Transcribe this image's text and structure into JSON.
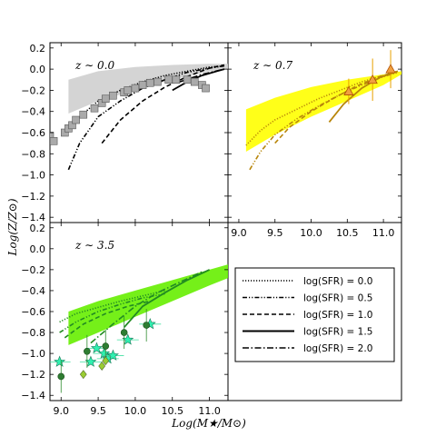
{
  "chart_data": {
    "type": "line",
    "xlabel": "Log(M★/M⊙)",
    "ylabel": "Log(Z/Z⊙)",
    "xlim": [
      8.85,
      11.25
    ],
    "ylim": [
      -1.45,
      0.25
    ],
    "xticks": [
      "9.0",
      "9.5",
      "10.0",
      "10.5",
      "11.0"
    ],
    "yticks": [
      "0.2",
      "0.0",
      "-0.2",
      "-0.4",
      "-0.6",
      "-0.8",
      "-1.0",
      "-1.2",
      "-1.4"
    ],
    "legend": {
      "placement": "lower-right panel",
      "entries": [
        {
          "label": "log(SFR) = 0.0",
          "style": "dotted"
        },
        {
          "label": "log(SFR) = 0.5",
          "style": "dash-dot-dot"
        },
        {
          "label": "log(SFR) = 1.0",
          "style": "dashed"
        },
        {
          "label": "log(SFR) = 1.5",
          "style": "solid"
        },
        {
          "label": "log(SFR) = 2.0",
          "style": "dash-dot"
        }
      ]
    },
    "panels": [
      {
        "label": "z ~ 0.0",
        "band_color": "#cfcfcf",
        "line_color": "#000000",
        "band": {
          "x": [
            9.1,
            9.5,
            10.0,
            10.5,
            11.0,
            11.25
          ],
          "upper": [
            -0.1,
            -0.02,
            0.02,
            0.04,
            0.05,
            0.05
          ],
          "lower": [
            -0.42,
            -0.3,
            -0.2,
            -0.1,
            -0.02,
            0.0
          ]
        },
        "series": [
          {
            "name": "log(SFR) = 0.0",
            "x": [
              9.1,
              9.3,
              9.5,
              9.8,
              10.1,
              10.4,
              10.7,
              11.0,
              11.2
            ],
            "y": [
              -0.58,
              -0.42,
              -0.3,
              -0.2,
              -0.12,
              -0.06,
              -0.02,
              0.02,
              0.03
            ]
          },
          {
            "name": "log(SFR) = 0.5",
            "x": [
              9.1,
              9.25,
              9.5,
              9.8,
              10.1,
              10.4,
              10.7,
              11.0,
              11.2
            ],
            "y": [
              -0.95,
              -0.7,
              -0.45,
              -0.3,
              -0.18,
              -0.1,
              -0.03,
              0.01,
              0.03
            ]
          },
          {
            "name": "log(SFR) = 1.0",
            "x": [
              9.55,
              9.8,
              10.1,
              10.4,
              10.7,
              11.0,
              11.2
            ],
            "y": [
              -0.7,
              -0.48,
              -0.3,
              -0.17,
              -0.07,
              0.01,
              0.04
            ]
          },
          {
            "name": "log(SFR) = 1.5",
            "x": [
              10.5,
              10.7,
              10.9,
              11.1,
              11.2
            ],
            "y": [
              -0.2,
              -0.12,
              -0.06,
              -0.02,
              0.0
            ]
          },
          {
            "name": "log(SFR) = 2.0",
            "x": [
              10.6,
              10.9,
              11.2
            ],
            "y": [
              -0.12,
              -0.05,
              0.0
            ]
          }
        ],
        "points": [
          {
            "x": 8.85,
            "y": -0.63
          },
          {
            "x": 8.9,
            "y": -0.68
          },
          {
            "x": 9.05,
            "y": -0.6
          },
          {
            "x": 9.1,
            "y": -0.56
          },
          {
            "x": 9.15,
            "y": -0.53
          },
          {
            "x": 9.2,
            "y": -0.48
          },
          {
            "x": 9.3,
            "y": -0.43
          },
          {
            "x": 9.45,
            "y": -0.37
          },
          {
            "x": 9.55,
            "y": -0.32
          },
          {
            "x": 9.6,
            "y": -0.28
          },
          {
            "x": 9.7,
            "y": -0.25
          },
          {
            "x": 9.85,
            "y": -0.22
          },
          {
            "x": 9.9,
            "y": -0.2
          },
          {
            "x": 10.0,
            "y": -0.18
          },
          {
            "x": 10.1,
            "y": -0.15
          },
          {
            "x": 10.2,
            "y": -0.13
          },
          {
            "x": 10.3,
            "y": -0.12
          },
          {
            "x": 10.45,
            "y": -0.1
          },
          {
            "x": 10.55,
            "y": -0.1
          },
          {
            "x": 10.7,
            "y": -0.1
          },
          {
            "x": 10.8,
            "y": -0.12
          },
          {
            "x": 10.9,
            "y": -0.15
          },
          {
            "x": 10.95,
            "y": -0.18
          }
        ]
      },
      {
        "label": "z ~ 0.7",
        "band_color": "#ffff00",
        "line_color": "#b8860b",
        "band": {
          "x": [
            9.1,
            9.5,
            10.0,
            10.5,
            11.0,
            11.25
          ],
          "upper": [
            -0.38,
            -0.27,
            -0.17,
            -0.1,
            -0.05,
            -0.02
          ],
          "lower": [
            -0.78,
            -0.62,
            -0.45,
            -0.3,
            -0.15,
            -0.05
          ]
        },
        "series": [
          {
            "name": "log(SFR) = 0.0",
            "x": [
              9.1,
              9.3,
              9.5,
              9.8,
              10.1,
              10.4,
              10.7,
              11.0,
              11.2
            ],
            "y": [
              -0.72,
              -0.58,
              -0.48,
              -0.38,
              -0.28,
              -0.2,
              -0.12,
              -0.06,
              -0.02
            ]
          },
          {
            "name": "log(SFR) = 0.5",
            "x": [
              9.15,
              9.3,
              9.5,
              9.8,
              10.1,
              10.4,
              10.7,
              11.0,
              11.2
            ],
            "y": [
              -0.95,
              -0.78,
              -0.62,
              -0.47,
              -0.35,
              -0.24,
              -0.15,
              -0.07,
              -0.03
            ]
          },
          {
            "name": "log(SFR) = 1.0",
            "x": [
              9.5,
              9.7,
              10.0,
              10.3,
              10.6,
              10.9,
              11.2
            ],
            "y": [
              -0.7,
              -0.55,
              -0.4,
              -0.28,
              -0.17,
              -0.08,
              -0.02
            ]
          },
          {
            "name": "log(SFR) = 1.5",
            "x": [
              10.25,
              10.45,
              10.7,
              10.95,
              11.2
            ],
            "y": [
              -0.5,
              -0.33,
              -0.18,
              -0.08,
              -0.02
            ]
          }
        ],
        "points": [
          {
            "x": 10.52,
            "y": -0.21,
            "yerr": 0.12
          },
          {
            "x": 10.85,
            "y": -0.1,
            "yerr": 0.2
          },
          {
            "x": 11.1,
            "y": 0.0,
            "yerr": 0.18
          }
        ]
      },
      {
        "label": "z ~ 3.5",
        "band_color": "#66ee00",
        "line_color": "#228b22",
        "band": {
          "x": [
            9.1,
            9.5,
            10.0,
            10.5,
            11.0,
            11.25
          ],
          "upper": [
            -0.6,
            -0.5,
            -0.4,
            -0.3,
            -0.2,
            -0.15
          ],
          "lower": [
            -0.92,
            -0.8,
            -0.65,
            -0.5,
            -0.35,
            -0.28
          ]
        },
        "series": [
          {
            "name": "log(SFR) = 0.0",
            "x": [
              8.98,
              9.2,
              9.5,
              9.8,
              10.1,
              10.4
            ],
            "y": [
              -0.7,
              -0.62,
              -0.56,
              -0.5,
              -0.45,
              -0.4
            ]
          },
          {
            "name": "log(SFR) = 0.5",
            "x": [
              8.98,
              9.2,
              9.5,
              9.8,
              10.1,
              10.4
            ],
            "y": [
              -0.8,
              -0.7,
              -0.6,
              -0.53,
              -0.47,
              -0.43
            ]
          },
          {
            "name": "log(SFR) = 1.0",
            "x": [
              9.05,
              9.3,
              9.6,
              9.9,
              10.2
            ],
            "y": [
              -0.85,
              -0.72,
              -0.62,
              -0.55,
              -0.5
            ]
          },
          {
            "name": "log(SFR) = 1.5",
            "x": [
              9.85,
              10.1,
              10.4,
              10.7,
              11.0
            ],
            "y": [
              -0.75,
              -0.55,
              -0.42,
              -0.3,
              -0.2
            ]
          },
          {
            "name": "log(SFR) = 2.0",
            "x": [
              9.4,
              9.7,
              10.0,
              10.3,
              10.6,
              10.9
            ],
            "y": [
              -0.9,
              -0.72,
              -0.55,
              -0.42,
              -0.32,
              -0.22
            ]
          }
        ],
        "stars": [
          {
            "x": 8.98,
            "y": -1.08
          },
          {
            "x": 9.4,
            "y": -1.08
          },
          {
            "x": 9.48,
            "y": -0.95
          },
          {
            "x": 9.58,
            "y": -1.0
          },
          {
            "x": 9.63,
            "y": -1.05
          },
          {
            "x": 9.7,
            "y": -1.02
          },
          {
            "x": 9.9,
            "y": -0.87
          },
          {
            "x": 10.2,
            "y": -0.72
          }
        ],
        "circles": [
          {
            "x": 9.0,
            "y": -1.22
          },
          {
            "x": 9.35,
            "y": -0.98
          },
          {
            "x": 9.6,
            "y": -0.93
          },
          {
            "x": 9.85,
            "y": -0.8
          },
          {
            "x": 10.15,
            "y": -0.73
          }
        ],
        "diamonds": [
          {
            "x": 9.3,
            "y": -1.2
          },
          {
            "x": 9.55,
            "y": -1.12
          },
          {
            "x": 9.6,
            "y": -1.07
          }
        ]
      }
    ]
  },
  "panel_labels": {
    "p0": "z ∼ 0.0",
    "p1": "z ∼ 0.7",
    "p2": "z ∼ 3.5"
  }
}
